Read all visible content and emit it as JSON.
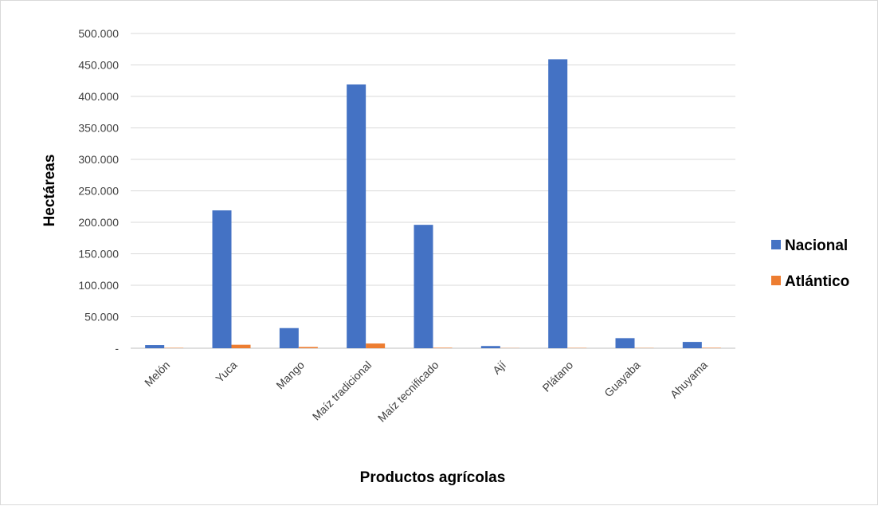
{
  "chart_data": {
    "type": "bar",
    "title": "",
    "xlabel": "Productos agrícolas",
    "ylabel": "Hectáreas",
    "categories": [
      "Melón",
      "Yuca",
      "Mango",
      "Maíz tradicional",
      "Maíz tecnificado",
      "Ají",
      "Plátano",
      "Guayaba",
      "Ahuyama"
    ],
    "series": [
      {
        "name": "Nacional",
        "color": "#4472c4",
        "values": [
          5000,
          219000,
          32000,
          419000,
          196000,
          3500,
          459000,
          16000,
          10000
        ]
      },
      {
        "name": "Atlántico",
        "color": "#ed7d31",
        "values": [
          600,
          5500,
          2000,
          7500,
          800,
          300,
          500,
          400,
          700
        ]
      }
    ],
    "ylim": [
      0,
      500000
    ],
    "yticks": [
      "-",
      "50.000",
      "100.000",
      "150.000",
      "200.000",
      "250.000",
      "300.000",
      "350.000",
      "400.000",
      "450.000",
      "500.000"
    ],
    "grid": true,
    "legend_position": "right"
  }
}
